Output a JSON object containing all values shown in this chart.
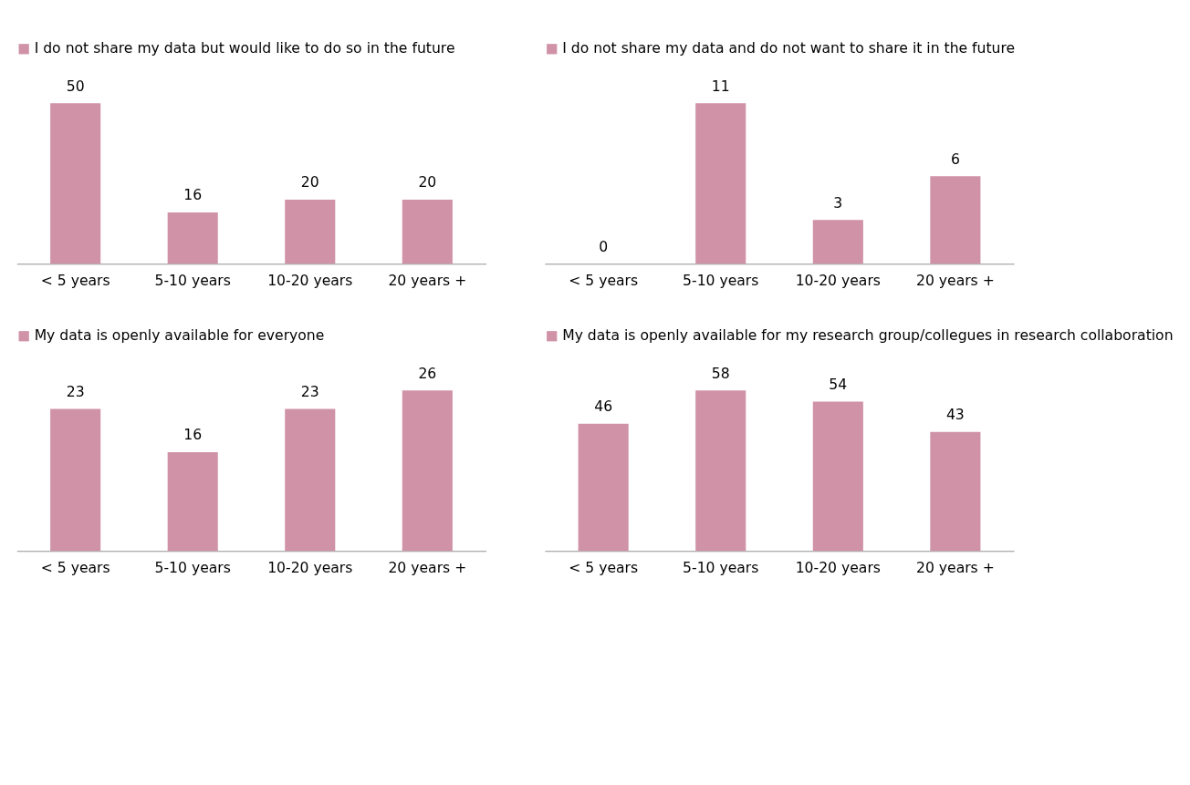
{
  "chart_data": [
    {
      "type": "bar",
      "categories": [
        "< 5 years",
        "5-10 years",
        "10-20 years",
        "20 years +"
      ],
      "series": [
        {
          "name": "I do not share my data but would like to do so in the future",
          "color": "#d092a7",
          "values": [
            50,
            16,
            20,
            20
          ]
        }
      ],
      "data_labels": true,
      "legend": "top",
      "tick_labels": "x"
    },
    {
      "type": "bar",
      "categories": [
        "< 5 years",
        "5-10 years",
        "10-20 years",
        "20 years +"
      ],
      "series": [
        {
          "name": "I do not share my data and do not want to share it in the future",
          "color": "#d092a7",
          "values": [
            0,
            11,
            3,
            6
          ]
        }
      ],
      "data_labels": true,
      "legend": "top",
      "tick_labels": "x"
    },
    {
      "type": "bar",
      "categories": [
        "< 5 years",
        "5-10 years",
        "10-20 years",
        "20 years +"
      ],
      "series": [
        {
          "name": "My data is openly available for everyone",
          "color": "#d092a7",
          "values": [
            23,
            16,
            23,
            26
          ]
        }
      ],
      "data_labels": true,
      "legend": "top",
      "tick_labels": "x"
    },
    {
      "type": "bar",
      "categories": [
        "< 5 years",
        "5-10 years",
        "10-20 years",
        "20 years +"
      ],
      "series": [
        {
          "name": "My data is openly available for my research group/collegues in research collaboration",
          "color": "#d092a7",
          "values": [
            46,
            58,
            54,
            43
          ]
        }
      ],
      "data_labels": true,
      "legend": "top",
      "tick_labels": "x"
    }
  ]
}
